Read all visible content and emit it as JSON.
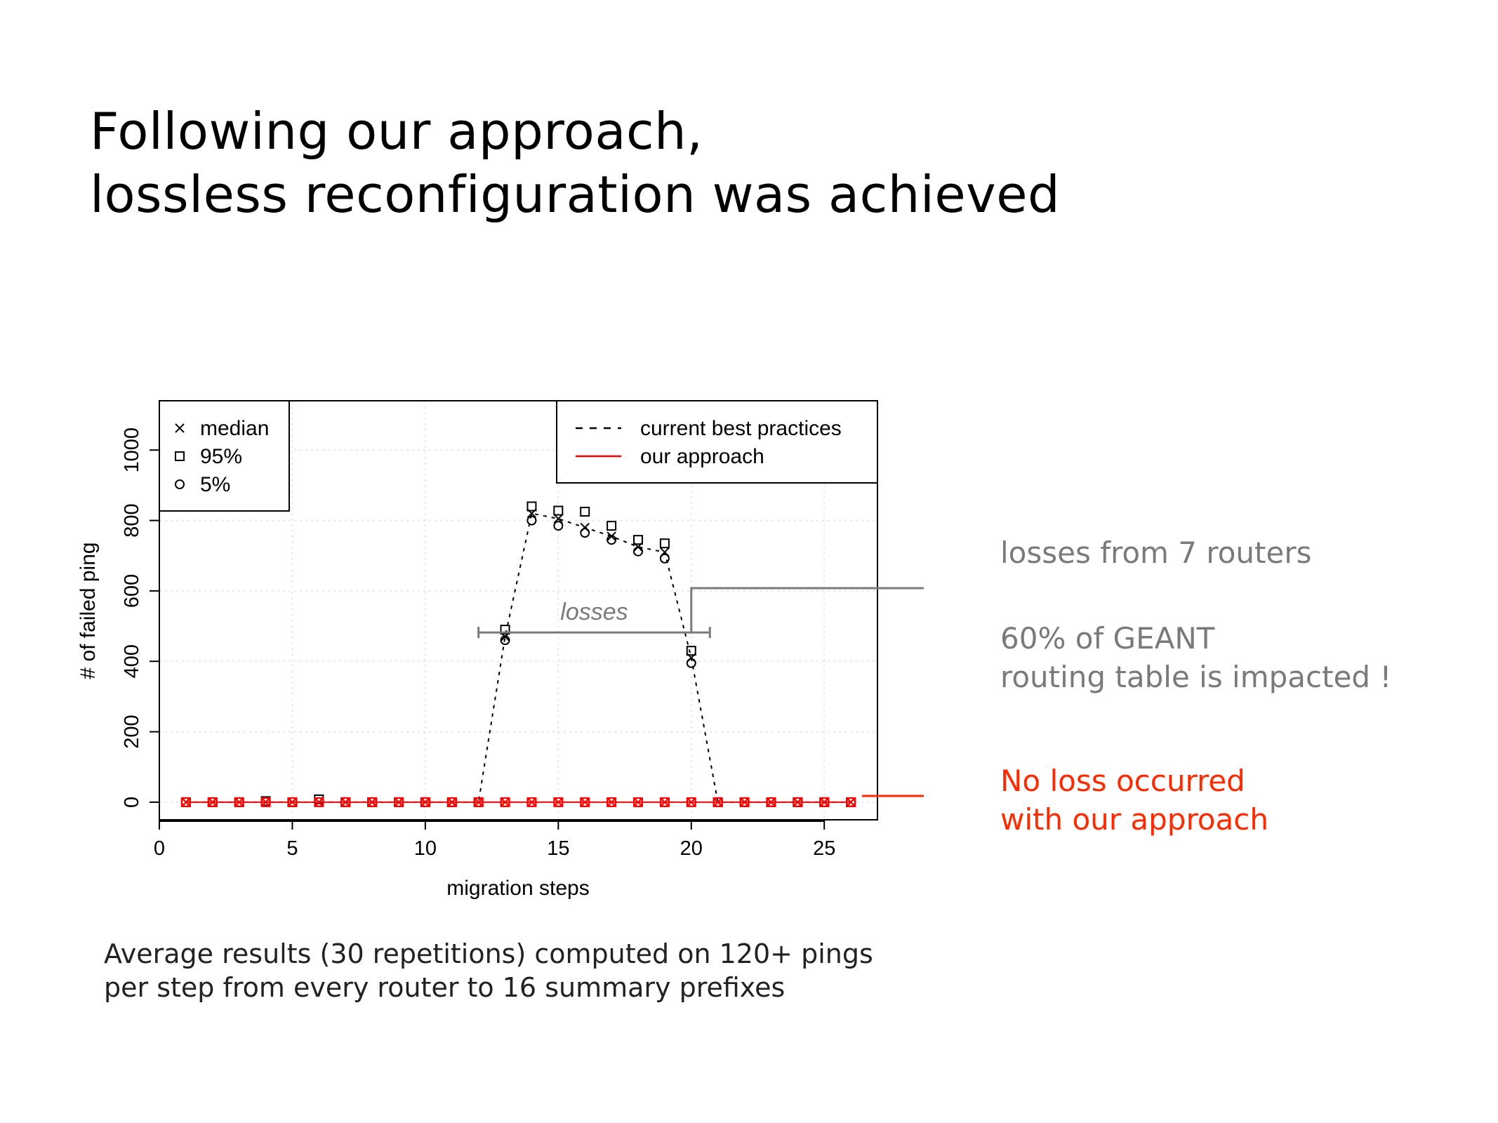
{
  "slide": {
    "title_lines": [
      "Following our approach,",
      "lossless reconfiguration was achieved"
    ],
    "notes": {
      "losses_routers": "losses from 7 routers",
      "impact_lines": [
        "60% of GEANT",
        "routing table is impacted !"
      ],
      "no_loss_lines": [
        "No loss occurred",
        "with our approach"
      ]
    },
    "caption_lines": [
      "Average results (30 repetitions) computed on 120+ pings",
      "per step from every router to 16 summary prefixes"
    ]
  },
  "colors": {
    "ours": "#ff0000",
    "annotation_gray": "#7a7a7a",
    "no_loss_red": "#ff2a00"
  },
  "chart_data": {
    "type": "line",
    "xlabel": "migration steps",
    "ylabel": "# of failed ping",
    "xlim": [
      0,
      27
    ],
    "ylim": [
      -50,
      1140
    ],
    "x_ticks": [
      0,
      5,
      10,
      15,
      20,
      25
    ],
    "y_ticks": [
      0,
      200,
      400,
      600,
      800,
      1000
    ],
    "grid": true,
    "marker_legend": [
      {
        "symbol": "x",
        "label": "median"
      },
      {
        "symbol": "square",
        "label": "95%"
      },
      {
        "symbol": "circle",
        "label": "5%"
      }
    ],
    "line_legend": [
      {
        "style": "dashed",
        "color": "#000000",
        "label": "current best practices"
      },
      {
        "style": "solid",
        "color": "#ff0000",
        "label": "our approach"
      }
    ],
    "series": [
      {
        "name": "current best practices",
        "x": [
          1,
          2,
          3,
          4,
          5,
          6,
          7,
          8,
          9,
          10,
          11,
          12,
          13,
          14,
          15,
          16,
          17,
          18,
          19,
          20,
          21,
          22,
          23,
          24,
          25,
          26
        ],
        "median": [
          0,
          0,
          0,
          0,
          0,
          0,
          0,
          0,
          0,
          0,
          0,
          0,
          470,
          820,
          805,
          780,
          755,
          725,
          710,
          410,
          0,
          0,
          0,
          0,
          0,
          0
        ],
        "p95": [
          0,
          0,
          0,
          3,
          0,
          8,
          0,
          0,
          0,
          0,
          0,
          0,
          490,
          840,
          828,
          825,
          785,
          745,
          735,
          430,
          0,
          0,
          0,
          0,
          0,
          0
        ],
        "p5": [
          0,
          0,
          0,
          0,
          0,
          0,
          0,
          0,
          0,
          0,
          0,
          0,
          460,
          800,
          785,
          765,
          745,
          712,
          692,
          395,
          0,
          0,
          0,
          0,
          0,
          0
        ]
      },
      {
        "name": "our approach",
        "x": [
          1,
          2,
          3,
          4,
          5,
          6,
          7,
          8,
          9,
          10,
          11,
          12,
          13,
          14,
          15,
          16,
          17,
          18,
          19,
          20,
          21,
          22,
          23,
          24,
          25,
          26
        ],
        "median": [
          0,
          0,
          0,
          0,
          0,
          0,
          0,
          0,
          0,
          0,
          0,
          0,
          0,
          0,
          0,
          0,
          0,
          0,
          0,
          0,
          0,
          0,
          0,
          0,
          0,
          0
        ],
        "p95": [
          0,
          0,
          0,
          0,
          0,
          0,
          0,
          0,
          0,
          0,
          0,
          0,
          0,
          0,
          0,
          0,
          0,
          0,
          0,
          0,
          0,
          0,
          0,
          0,
          0,
          0
        ],
        "p5": [
          0,
          0,
          0,
          0,
          0,
          0,
          0,
          0,
          0,
          0,
          0,
          0,
          0,
          0,
          0,
          0,
          0,
          0,
          0,
          0,
          0,
          0,
          0,
          0,
          0,
          0
        ]
      }
    ],
    "annotation": {
      "label": "losses",
      "x_start": 12,
      "x_end": 20.7,
      "y": 482
    }
  }
}
